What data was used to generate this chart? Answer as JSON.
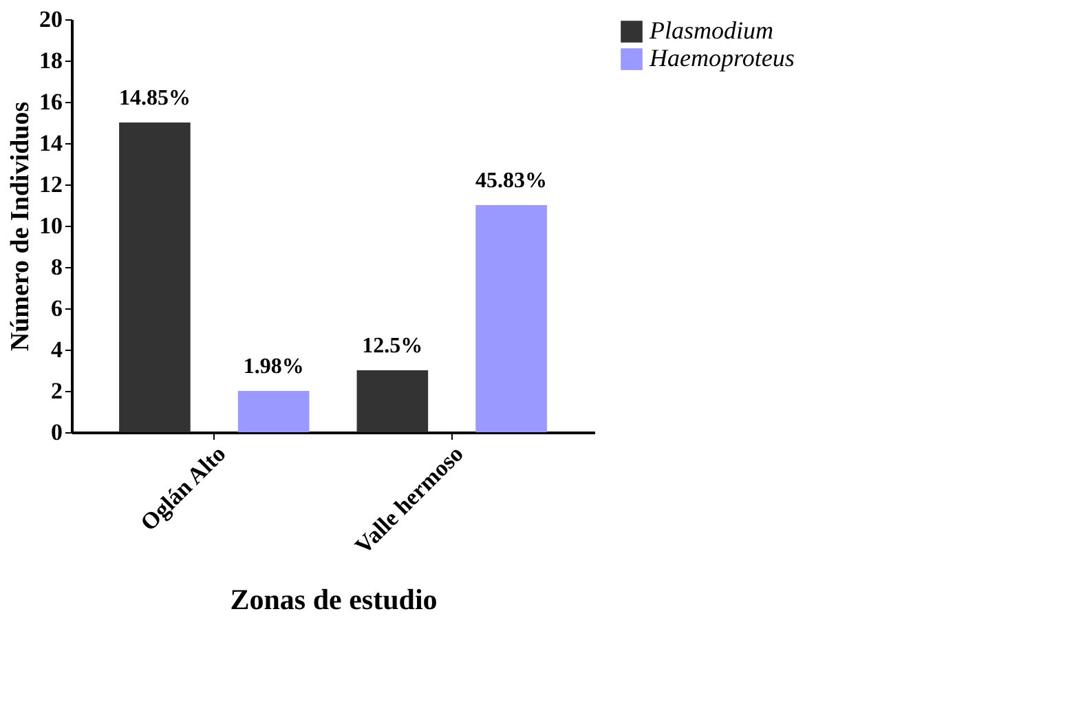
{
  "chart_data": {
    "type": "bar",
    "xlabel": "Zonas de estudio",
    "ylabel": "Número de Individuos",
    "categories": [
      "Oglán Alto",
      "Valle hermoso"
    ],
    "series": [
      {
        "name": "Plasmodium",
        "color": "#333333",
        "values": [
          15,
          3
        ]
      },
      {
        "name": "Haemoproteus",
        "color": "#9999ff",
        "values": [
          2,
          11
        ]
      }
    ],
    "annotations": [
      "14.85%",
      "12.5%",
      "1.98%",
      "45.83%"
    ],
    "ylim": [
      0,
      20
    ],
    "yticks": [
      0,
      2,
      4,
      6,
      8,
      10,
      12,
      14,
      16,
      18,
      20
    ],
    "grid": false,
    "legend": "top right"
  }
}
